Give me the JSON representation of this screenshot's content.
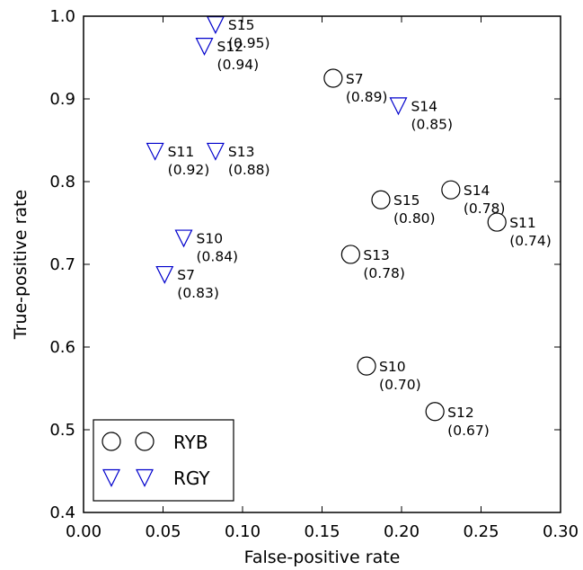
{
  "chart_data": {
    "type": "scatter",
    "title": "",
    "xlabel": "False-positive rate",
    "ylabel": "True-positive rate",
    "xlim": [
      0.0,
      0.3
    ],
    "ylim": [
      0.4,
      1.0
    ],
    "xticks": [
      "0.00",
      "0.05",
      "0.10",
      "0.15",
      "0.20",
      "0.25",
      "0.30"
    ],
    "yticks": [
      "0.4",
      "0.5",
      "0.6",
      "0.7",
      "0.8",
      "0.9",
      "1.0"
    ],
    "grid": false,
    "legend_position": "lower-left",
    "series": [
      {
        "name": "RYB",
        "marker": "circle",
        "color": "#000000",
        "points": [
          {
            "x": 0.157,
            "y": 0.925,
            "label": "S7",
            "value": "(0.89)"
          },
          {
            "x": 0.178,
            "y": 0.577,
            "label": "S10",
            "value": "(0.70)"
          },
          {
            "x": 0.26,
            "y": 0.751,
            "label": "S11",
            "value": "(0.74)"
          },
          {
            "x": 0.221,
            "y": 0.522,
            "label": "S12",
            "value": "(0.67)"
          },
          {
            "x": 0.168,
            "y": 0.712,
            "label": "S13",
            "value": "(0.78)"
          },
          {
            "x": 0.231,
            "y": 0.79,
            "label": "S14",
            "value": "(0.78)"
          },
          {
            "x": 0.187,
            "y": 0.778,
            "label": "S15",
            "value": "(0.80)"
          }
        ]
      },
      {
        "name": "RGY",
        "marker": "triangle-down",
        "color": "#0000cc",
        "points": [
          {
            "x": 0.051,
            "y": 0.688,
            "label": "S7",
            "value": "(0.83)"
          },
          {
            "x": 0.063,
            "y": 0.732,
            "label": "S10",
            "value": "(0.84)"
          },
          {
            "x": 0.045,
            "y": 0.837,
            "label": "S11",
            "value": "(0.92)"
          },
          {
            "x": 0.076,
            "y": 0.964,
            "label": "S12",
            "value": "(0.94)"
          },
          {
            "x": 0.083,
            "y": 0.837,
            "label": "S13",
            "value": "(0.88)"
          },
          {
            "x": 0.198,
            "y": 0.892,
            "label": "S14",
            "value": "(0.85)"
          },
          {
            "x": 0.083,
            "y": 0.99,
            "label": "S15",
            "value": "(0.95)"
          }
        ]
      }
    ]
  }
}
